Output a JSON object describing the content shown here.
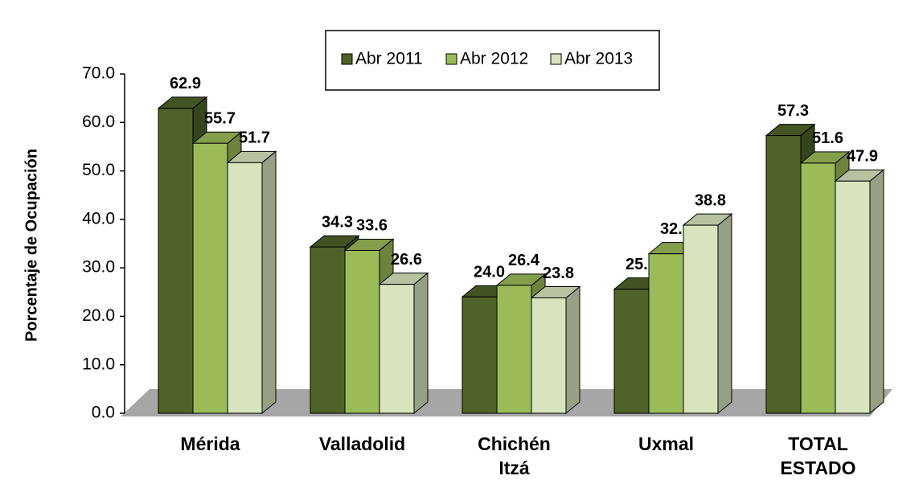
{
  "chart_data": {
    "type": "bar3d",
    "y_axis_label": "Porcentaje de Ocupación",
    "categories": [
      "Mérida",
      "Valladolid",
      "Chichén Itzá",
      "Uxmal",
      "TOTAL ESTADO"
    ],
    "series": [
      {
        "name": "Abr 2011",
        "color": "#4f6228",
        "values": [
          62.9,
          34.3,
          24.0,
          25.6,
          57.3
        ],
        "value_labels": [
          "62.9",
          "34.3",
          "24.0",
          "25.6",
          "57.3"
        ]
      },
      {
        "name": "Abr 2012",
        "color": "#9bbb59",
        "values": [
          55.7,
          33.6,
          26.4,
          32.9,
          51.6
        ],
        "value_labels": [
          "55.7",
          "33.6",
          "26.4",
          "32.9",
          "51.6"
        ]
      },
      {
        "name": "Abr 2013",
        "color": "#d7e4bd",
        "values": [
          51.7,
          26.6,
          23.8,
          38.8,
          47.9
        ],
        "value_labels": [
          "51.7",
          "26.6",
          "23.8",
          "38.8",
          "47.9"
        ]
      }
    ],
    "ylim": [
      0,
      70
    ],
    "yticks": [
      {
        "value": 0,
        "label": "0.0"
      },
      {
        "value": 10,
        "label": "10.0"
      },
      {
        "value": 20,
        "label": "20.0"
      },
      {
        "value": 30,
        "label": "30.0"
      },
      {
        "value": 40,
        "label": "40.0"
      },
      {
        "value": 50,
        "label": "50.0"
      },
      {
        "value": 60,
        "label": "60.0"
      },
      {
        "value": 70,
        "label": "70.0"
      }
    ],
    "legend": "top"
  }
}
